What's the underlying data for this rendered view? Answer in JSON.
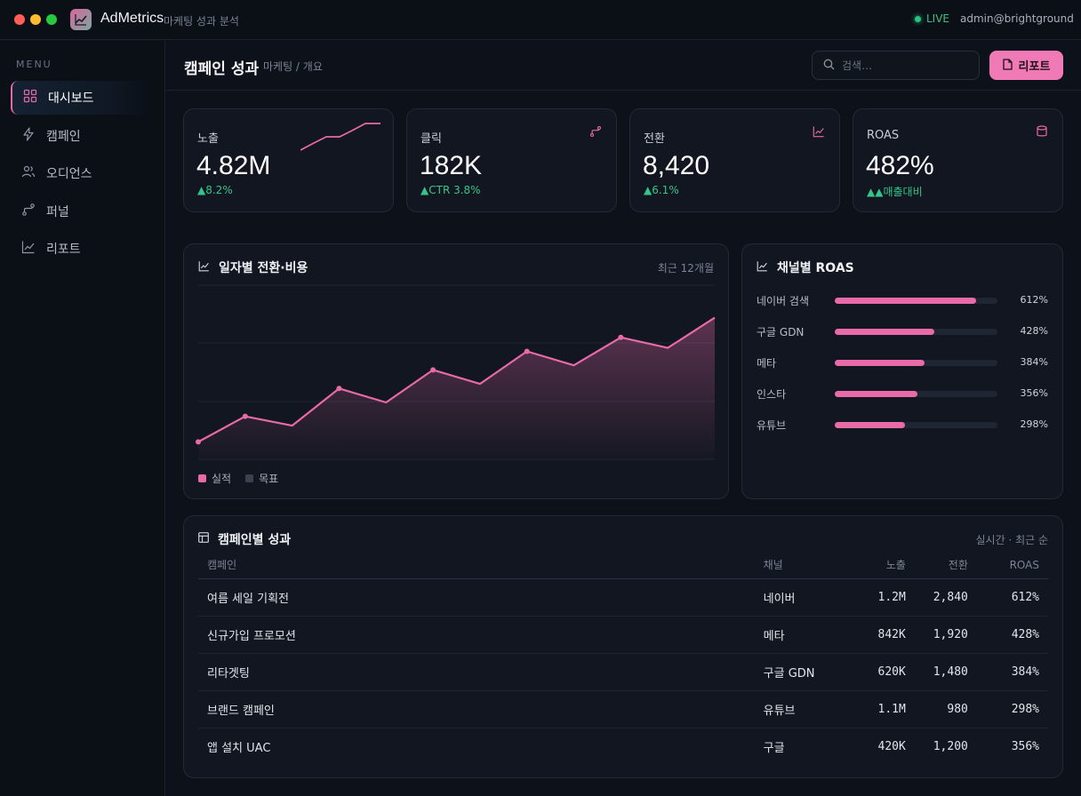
{
  "app": {
    "name": "AdMetrics",
    "subtitle": "마케팅 성과 분석",
    "live_label": "LIVE",
    "user": "admin@brightground"
  },
  "sidebar": {
    "menu_label": "MENU",
    "items": [
      {
        "label": "대시보드",
        "icon": "grid-icon",
        "active": true
      },
      {
        "label": "캠페인",
        "icon": "bolt-icon",
        "active": false
      },
      {
        "label": "오디언스",
        "icon": "users-icon",
        "active": false
      },
      {
        "label": "퍼널",
        "icon": "route-icon",
        "active": false
      },
      {
        "label": "리포트",
        "icon": "chart-line-icon",
        "active": false
      }
    ]
  },
  "header": {
    "title": "캠페인 성과",
    "breadcrumb": "마케팅 / 개요",
    "search_placeholder": "검색…",
    "report_button": "리포트"
  },
  "kpis": [
    {
      "label": "노출",
      "value": "4.82M",
      "delta": "▲8.2%",
      "icon": "sparkline"
    },
    {
      "label": "클릭",
      "value": "182K",
      "delta": "▲CTR 3.8%",
      "icon": "route-icon"
    },
    {
      "label": "전환",
      "value": "8,420",
      "delta": "▲6.1%",
      "icon": "chart-line-icon"
    },
    {
      "label": "ROAS",
      "value": "482%",
      "delta": "▲▲매출대비",
      "icon": "database-icon"
    }
  ],
  "line_panel": {
    "title": "일자별 전환·비용",
    "meta": "최근 12개월",
    "legend": [
      {
        "label": "실적",
        "color": "#e86aa8"
      },
      {
        "label": "목표",
        "color": "#3a4150"
      }
    ]
  },
  "chart_data": {
    "type": "area",
    "title": "일자별 전환·비용",
    "series": [
      {
        "name": "실적",
        "values": [
          15,
          37,
          29,
          61,
          49,
          77,
          65,
          93,
          81,
          105,
          96,
          122
        ]
      }
    ],
    "ylim": [
      0,
      150
    ],
    "grid": true
  },
  "roas_panel": {
    "title": "채널별 ROAS",
    "rows": [
      {
        "name": "네이버 검색",
        "value": "612%",
        "fill": 0.87
      },
      {
        "name": "구글 GDN",
        "value": "428%",
        "fill": 0.61
      },
      {
        "name": "메타",
        "value": "384%",
        "fill": 0.55
      },
      {
        "name": "인스타",
        "value": "356%",
        "fill": 0.51
      },
      {
        "name": "유튜브",
        "value": "298%",
        "fill": 0.43
      }
    ]
  },
  "campaign_table": {
    "title": "캠페인별 성과",
    "meta": "실시간 · 최근 순",
    "columns": [
      "캠페인",
      "채널",
      "노출",
      "전환",
      "ROAS"
    ],
    "rows": [
      [
        "여름 세일 기획전",
        "네이버",
        "1.2M",
        "2,840",
        "612%"
      ],
      [
        "신규가입 프로모션",
        "메타",
        "842K",
        "1,920",
        "428%"
      ],
      [
        "리타겟팅",
        "구글 GDN",
        "620K",
        "1,480",
        "384%"
      ],
      [
        "브랜드 캠페인",
        "유튜브",
        "1.1M",
        "980",
        "298%"
      ],
      [
        "앱 설치 UAC",
        "구글",
        "420K",
        "1,200",
        "356%"
      ]
    ]
  },
  "colors": {
    "accent": "#f07ab5",
    "positive": "#35c58a",
    "background": "#0d1119"
  }
}
